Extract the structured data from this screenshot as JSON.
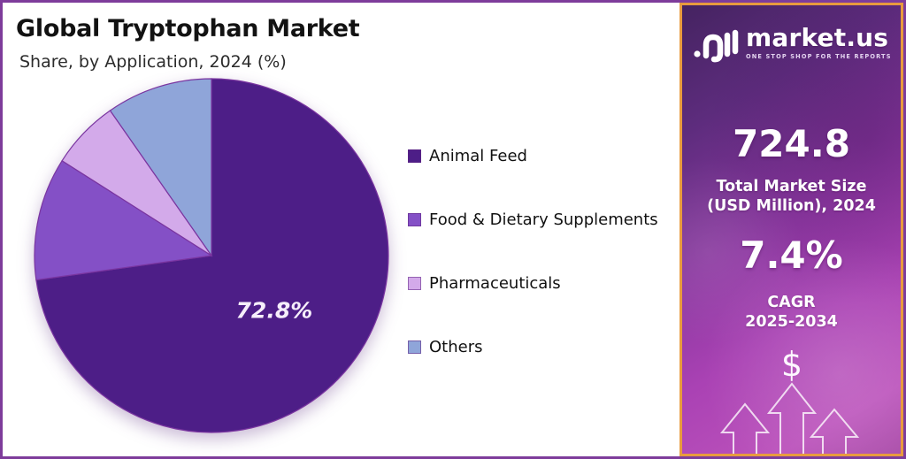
{
  "page": {
    "title": "Global Tryptophan Market",
    "subtitle": "Share, by Application, 2024 (%)"
  },
  "chart_data": {
    "type": "pie",
    "title": "Global Tryptophan Market",
    "subtitle": "Share, by Application, 2024 (%)",
    "unit": "%",
    "start_angle_deg": 0,
    "direction": "clockwise",
    "legend_position": "right",
    "slices": [
      {
        "label": "Animal Feed",
        "value": 72.8,
        "color": "#4d1e87",
        "data_label": "72.8%"
      },
      {
        "label": "Food & Dietary Supplements",
        "value": 11.2,
        "color": "#8450c6",
        "data_label": ""
      },
      {
        "label": "Pharmaceuticals",
        "value": 6.3,
        "color": "#d3aaea",
        "data_label": ""
      },
      {
        "label": "Others",
        "value": 9.7,
        "color": "#8fa5d9",
        "data_label": ""
      }
    ]
  },
  "sidebar": {
    "brand": {
      "name": "market.us",
      "tagline": "ONE STOP SHOP FOR THE REPORTS"
    },
    "market_size": {
      "value": "724.8",
      "label_line1": "Total Market Size",
      "label_line2": "(USD Million), 2024"
    },
    "cagr": {
      "value": "7.4%",
      "label_line1": "CAGR",
      "label_line2": "2025-2034"
    },
    "dollar_icon": "$"
  },
  "colors": {
    "outer_border": "#7e3c9b",
    "panel_border": "#e89b3e",
    "panel_purple": "#8b37a0",
    "slice_stroke": "#7a35a0",
    "title_text": "#121212",
    "stat_text": "#ffffff"
  }
}
